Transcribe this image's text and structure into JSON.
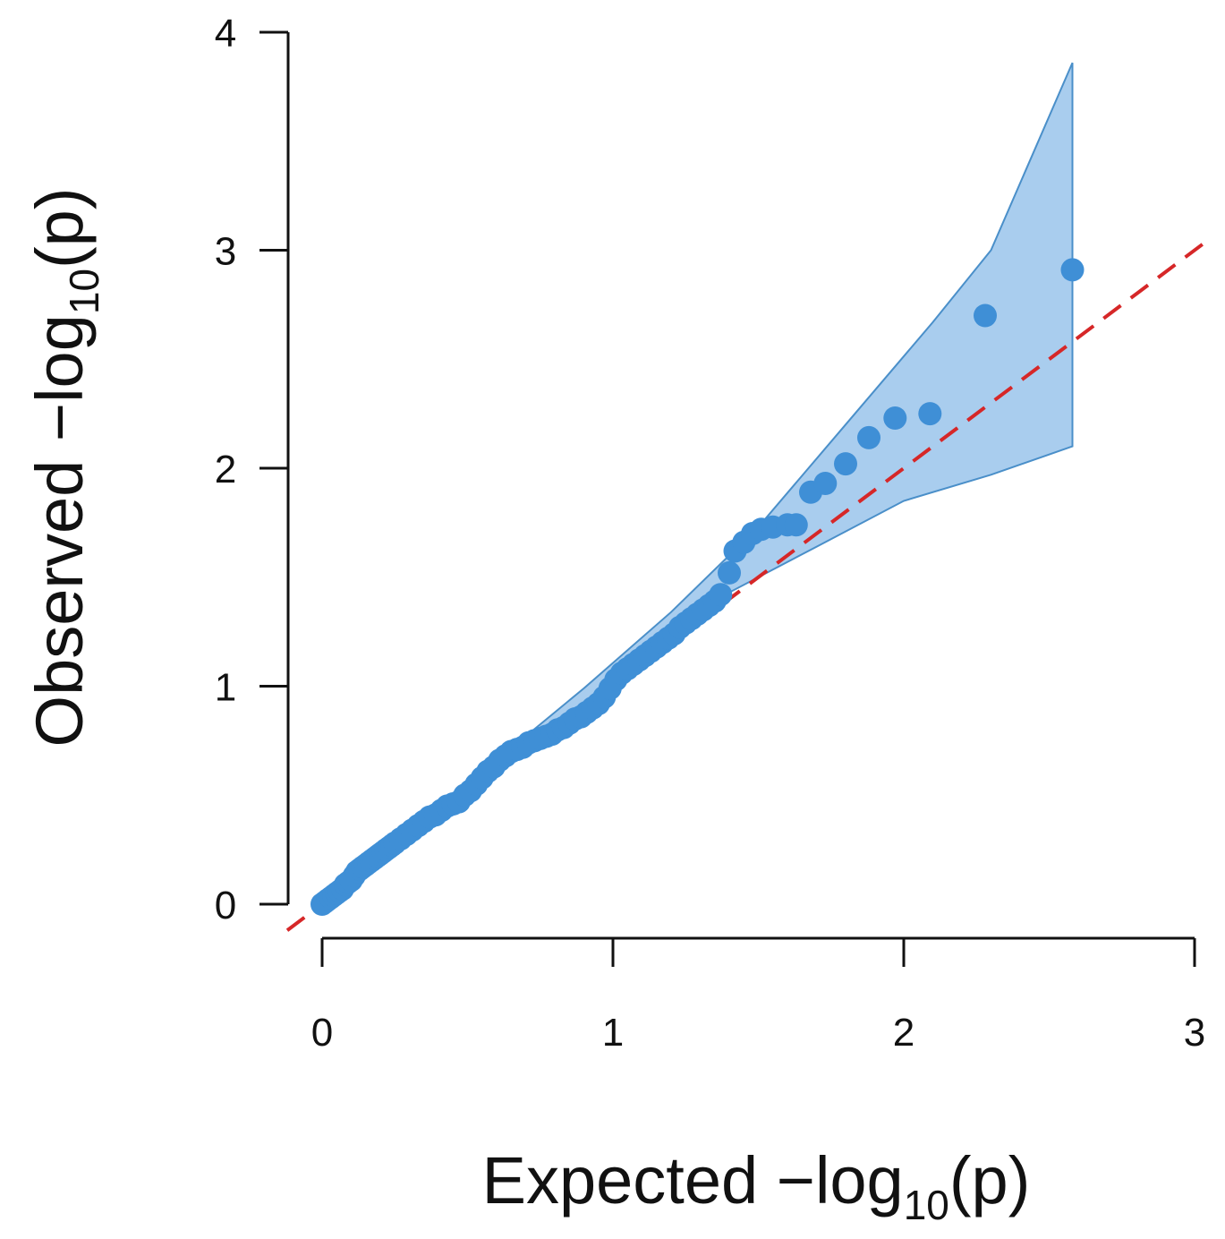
{
  "chart_data": {
    "type": "scatter",
    "title": "",
    "xlabel": {
      "prefix": "Expected  −log",
      "sub": "10",
      "suffix": "(p)"
    },
    "ylabel": {
      "prefix": "Observed  −log",
      "sub": "10",
      "suffix": "(p)"
    },
    "xlim": [
      0,
      3
    ],
    "ylim": [
      0,
      4
    ],
    "x_ticks": [
      0,
      1,
      2,
      3
    ],
    "x_tick_labels": [
      "0",
      "1",
      "2",
      "3"
    ],
    "y_ticks": [
      0,
      1,
      2,
      3,
      4
    ],
    "y_tick_labels": [
      "0",
      "1",
      "2",
      "3",
      "4"
    ],
    "grid": false,
    "colors": {
      "points": "#3f8fd6",
      "band_fill": "#a9cdee",
      "band_stroke": "#4a8fc9",
      "reference_line": "#d62728",
      "axes": "#111111"
    },
    "reference_line": {
      "style": "dashed",
      "from": [
        -0.12,
        -0.12
      ],
      "to": [
        3.06,
        3.06
      ]
    },
    "confidence_band": {
      "upper": [
        [
          0.0,
          0.02
        ],
        [
          0.3,
          0.34
        ],
        [
          0.6,
          0.66
        ],
        [
          0.9,
          0.99
        ],
        [
          1.2,
          1.34
        ],
        [
          1.5,
          1.73
        ],
        [
          1.8,
          2.2
        ],
        [
          2.1,
          2.67
        ],
        [
          2.3,
          3.0
        ],
        [
          2.58,
          3.86
        ]
      ],
      "lower": [
        [
          2.58,
          2.1
        ],
        [
          2.3,
          1.97
        ],
        [
          2.0,
          1.85
        ],
        [
          1.7,
          1.64
        ],
        [
          1.4,
          1.43
        ],
        [
          1.1,
          1.16
        ],
        [
          0.9,
          0.89
        ],
        [
          0.6,
          0.6
        ],
        [
          0.3,
          0.29
        ],
        [
          0.0,
          0.0
        ]
      ]
    },
    "series": [
      {
        "name": "observed",
        "points": [
          [
            0.0,
            0.0
          ],
          [
            0.01,
            0.01
          ],
          [
            0.02,
            0.02
          ],
          [
            0.03,
            0.03
          ],
          [
            0.04,
            0.04
          ],
          [
            0.05,
            0.05
          ],
          [
            0.06,
            0.06
          ],
          [
            0.07,
            0.07
          ],
          [
            0.08,
            0.09
          ],
          [
            0.09,
            0.1
          ],
          [
            0.1,
            0.11
          ],
          [
            0.11,
            0.13
          ],
          [
            0.12,
            0.15
          ],
          [
            0.13,
            0.16
          ],
          [
            0.14,
            0.17
          ],
          [
            0.15,
            0.18
          ],
          [
            0.16,
            0.19
          ],
          [
            0.17,
            0.2
          ],
          [
            0.18,
            0.21
          ],
          [
            0.19,
            0.22
          ],
          [
            0.2,
            0.23
          ],
          [
            0.21,
            0.24
          ],
          [
            0.22,
            0.25
          ],
          [
            0.23,
            0.26
          ],
          [
            0.24,
            0.27
          ],
          [
            0.25,
            0.28
          ],
          [
            0.27,
            0.3
          ],
          [
            0.29,
            0.32
          ],
          [
            0.31,
            0.34
          ],
          [
            0.33,
            0.36
          ],
          [
            0.35,
            0.38
          ],
          [
            0.37,
            0.4
          ],
          [
            0.39,
            0.41
          ],
          [
            0.41,
            0.43
          ],
          [
            0.43,
            0.45
          ],
          [
            0.45,
            0.46
          ],
          [
            0.47,
            0.47
          ],
          [
            0.49,
            0.5
          ],
          [
            0.51,
            0.52
          ],
          [
            0.53,
            0.55
          ],
          [
            0.55,
            0.58
          ],
          [
            0.57,
            0.61
          ],
          [
            0.59,
            0.63
          ],
          [
            0.61,
            0.66
          ],
          [
            0.63,
            0.68
          ],
          [
            0.65,
            0.7
          ],
          [
            0.67,
            0.71
          ],
          [
            0.69,
            0.72
          ],
          [
            0.71,
            0.74
          ],
          [
            0.73,
            0.75
          ],
          [
            0.75,
            0.76
          ],
          [
            0.77,
            0.77
          ],
          [
            0.79,
            0.78
          ],
          [
            0.81,
            0.8
          ],
          [
            0.83,
            0.81
          ],
          [
            0.85,
            0.83
          ],
          [
            0.87,
            0.85
          ],
          [
            0.89,
            0.86
          ],
          [
            0.91,
            0.88
          ],
          [
            0.93,
            0.9
          ],
          [
            0.95,
            0.92
          ],
          [
            0.97,
            0.95
          ],
          [
            0.99,
            0.99
          ],
          [
            1.01,
            1.03
          ],
          [
            1.03,
            1.06
          ],
          [
            1.05,
            1.08
          ],
          [
            1.07,
            1.1
          ],
          [
            1.09,
            1.12
          ],
          [
            1.11,
            1.14
          ],
          [
            1.13,
            1.16
          ],
          [
            1.15,
            1.18
          ],
          [
            1.17,
            1.2
          ],
          [
            1.19,
            1.22
          ],
          [
            1.21,
            1.24
          ],
          [
            1.23,
            1.27
          ],
          [
            1.25,
            1.29
          ],
          [
            1.27,
            1.31
          ],
          [
            1.29,
            1.33
          ],
          [
            1.31,
            1.35
          ],
          [
            1.33,
            1.37
          ],
          [
            1.35,
            1.39
          ],
          [
            1.37,
            1.42
          ],
          [
            1.4,
            1.52
          ],
          [
            1.42,
            1.62
          ],
          [
            1.45,
            1.66
          ],
          [
            1.48,
            1.7
          ],
          [
            1.51,
            1.72
          ],
          [
            1.55,
            1.73
          ],
          [
            1.6,
            1.74
          ],
          [
            1.63,
            1.74
          ],
          [
            1.68,
            1.89
          ],
          [
            1.73,
            1.93
          ],
          [
            1.8,
            2.02
          ],
          [
            1.88,
            2.14
          ],
          [
            1.97,
            2.23
          ],
          [
            2.09,
            2.25
          ],
          [
            2.28,
            2.7
          ],
          [
            2.58,
            2.91
          ]
        ]
      }
    ]
  }
}
